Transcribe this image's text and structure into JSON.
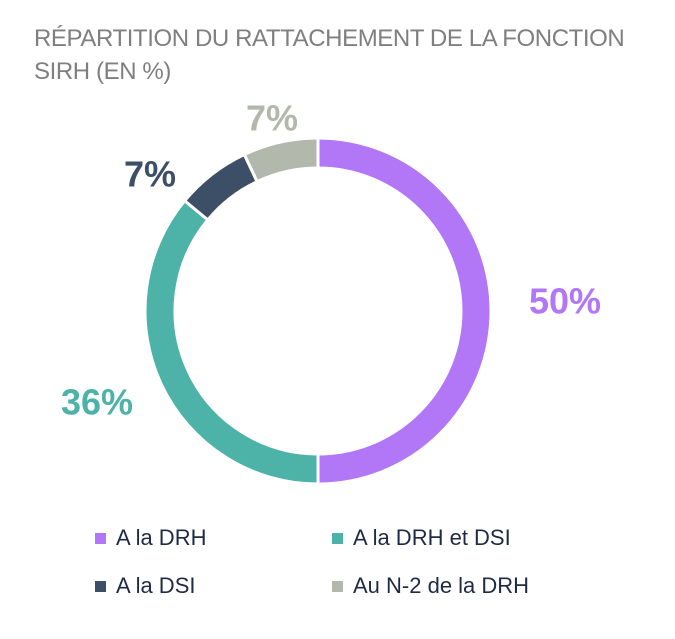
{
  "chart_data": {
    "type": "pie",
    "title": "RÉPARTITION DU RATTACHEMENT DE LA FONCTION SIRH (EN %)",
    "categories": [
      "A la DRH",
      "A la DRH et DSI",
      "A la DSI",
      "Au N-2 de la DRH"
    ],
    "values": [
      50,
      36,
      7,
      7
    ],
    "value_labels": [
      "50%",
      "36%",
      "7%",
      "7%"
    ],
    "colors": [
      "#b277f6",
      "#4db2a7",
      "#3d4f66",
      "#b3b8ad"
    ],
    "legend": "bottom",
    "style": "donut"
  }
}
